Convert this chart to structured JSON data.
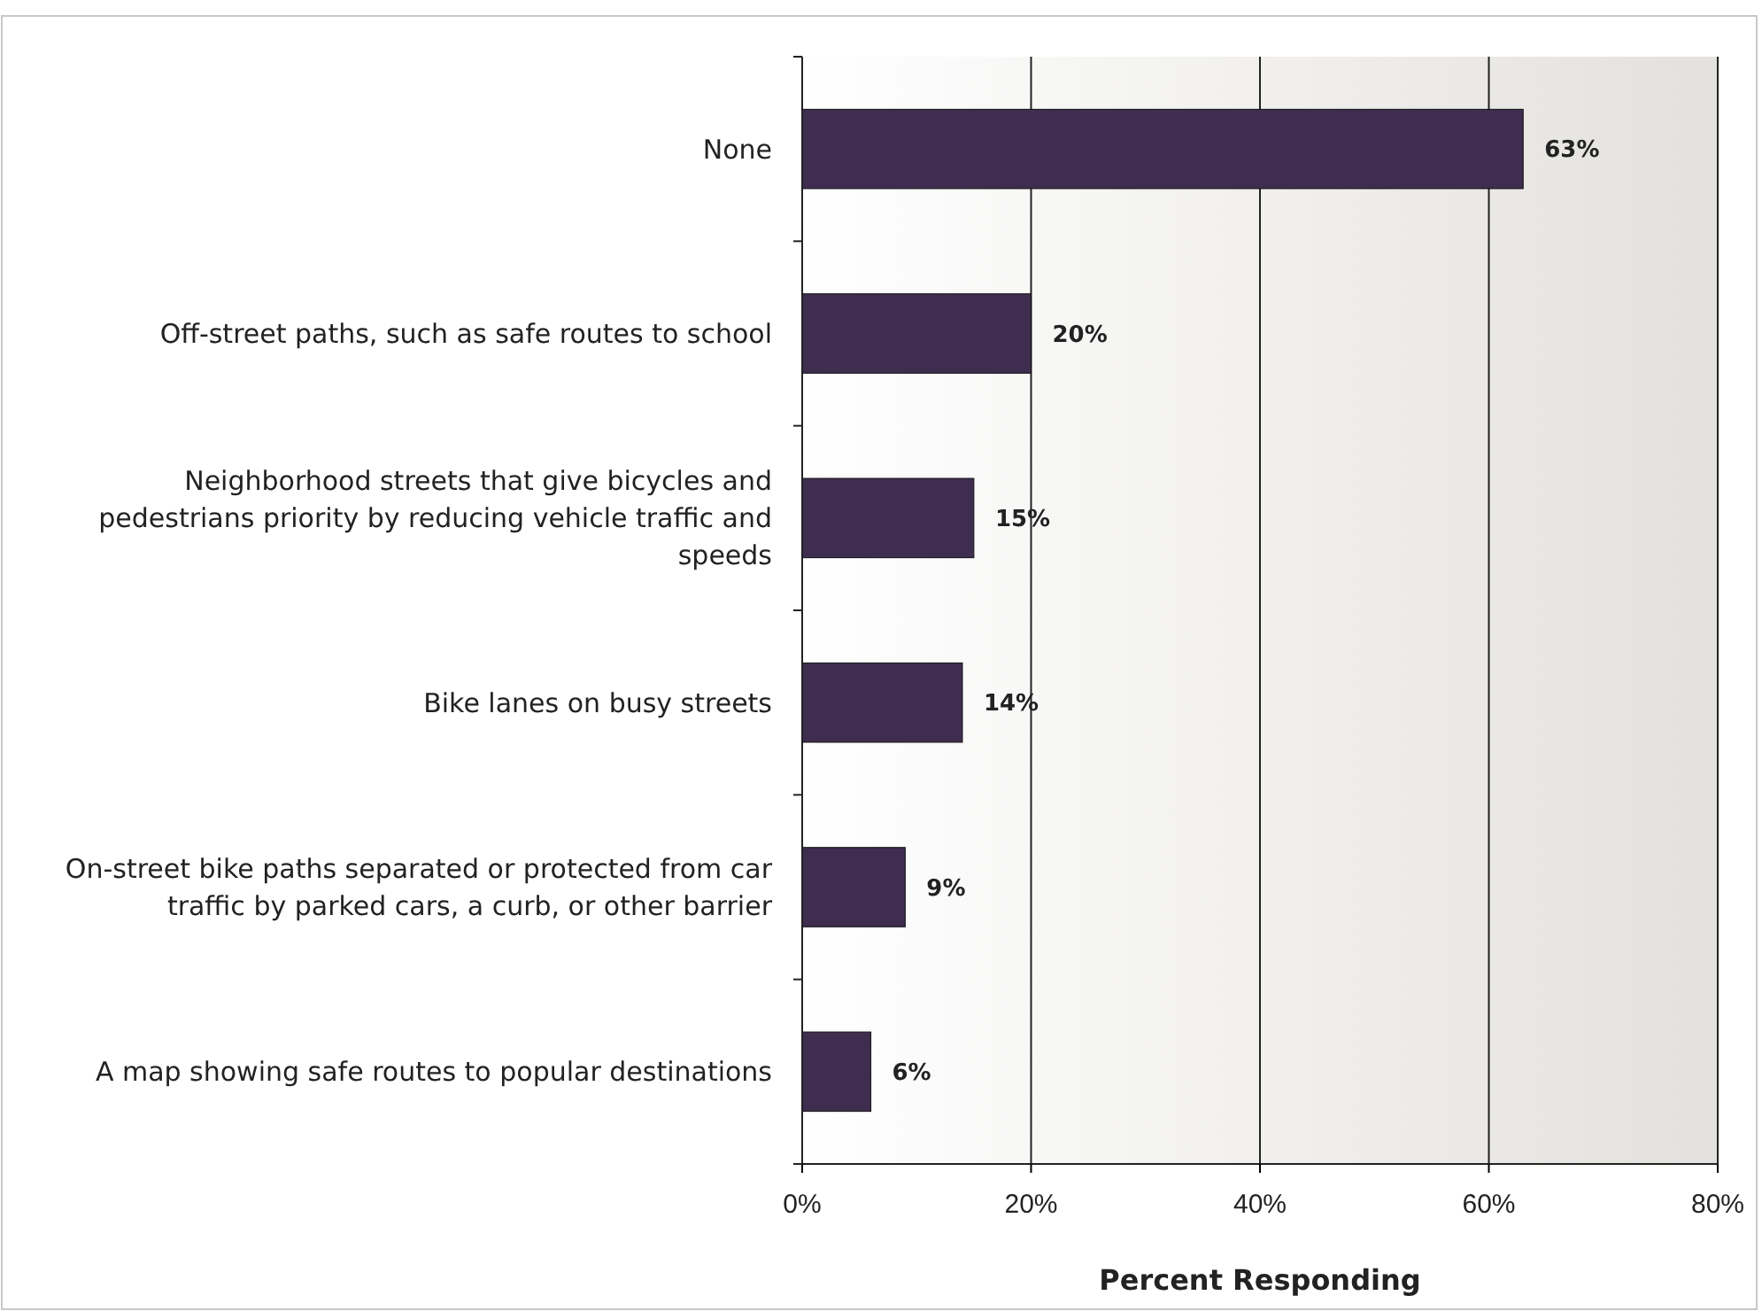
{
  "chart_data": {
    "type": "bar",
    "orientation": "horizontal",
    "xlabel": "Percent Responding",
    "categories": [
      "None",
      "Off-street paths, such as safe routes to school",
      "Neighborhood streets that give bicycles and pedestrians priority by reducing vehicle traffic and speeds",
      "Bike lanes on busy streets",
      "On-street bike paths separated or protected from car traffic by parked cars, a curb, or other barrier",
      "A map showing safe routes to popular destinations"
    ],
    "values": [
      63,
      20,
      15,
      14,
      9,
      6
    ],
    "value_labels": [
      "63%",
      "20%",
      "15%",
      "14%",
      "9%",
      "6%"
    ],
    "color": "#3f2d50",
    "xlim": [
      0,
      80
    ],
    "xticks": [
      {
        "value": 0,
        "label": "0%"
      },
      {
        "value": 20,
        "label": "20%"
      },
      {
        "value": 40,
        "label": "40%"
      },
      {
        "value": 60,
        "label": "60%"
      },
      {
        "value": 80,
        "label": "80%"
      }
    ],
    "grid": "x"
  }
}
